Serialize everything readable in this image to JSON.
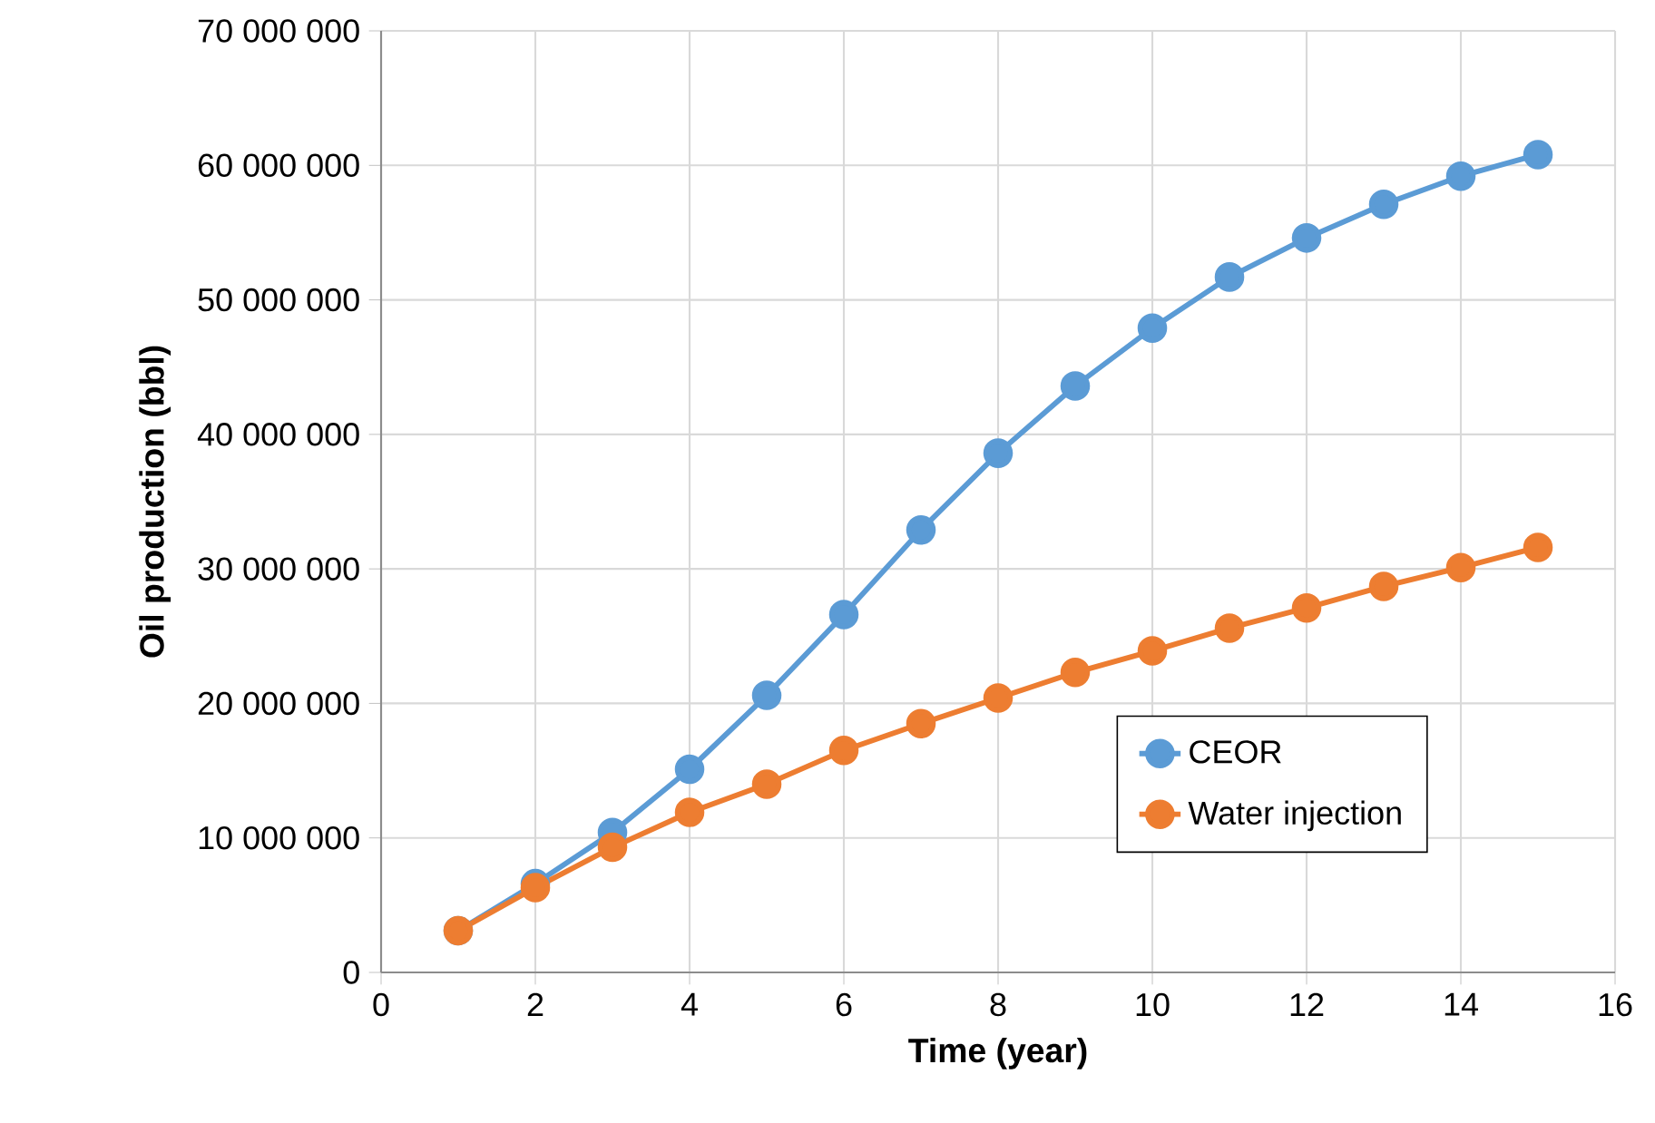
{
  "chart_data": {
    "type": "line",
    "xlabel": "Time (year)",
    "ylabel": "Oil production (bbl)",
    "x": [
      1,
      2,
      3,
      4,
      5,
      6,
      7,
      8,
      9,
      10,
      11,
      12,
      13,
      14,
      15
    ],
    "series": [
      {
        "name": "CEOR",
        "color": "#5b9bd5",
        "values": [
          3100000,
          6600000,
          10400000,
          15100000,
          20600000,
          26600000,
          32900000,
          38600000,
          43600000,
          47900000,
          51700000,
          54600000,
          57100000,
          59200000,
          60800000
        ]
      },
      {
        "name": "Water injection",
        "color": "#ed7d31",
        "values": [
          3100000,
          6300000,
          9300000,
          11900000,
          14000000,
          16500000,
          18500000,
          20400000,
          22300000,
          23900000,
          25600000,
          27100000,
          28700000,
          30100000,
          31600000
        ]
      }
    ],
    "xlim": [
      0,
      16
    ],
    "xticks": [
      0,
      2,
      4,
      6,
      8,
      10,
      12,
      14,
      16
    ],
    "ylim": [
      0,
      70000000
    ],
    "yticks": [
      {
        "value": 0,
        "label": "0"
      },
      {
        "value": 10000000,
        "label": "10 000 000"
      },
      {
        "value": 20000000,
        "label": "20 000 000"
      },
      {
        "value": 30000000,
        "label": "30 000 000"
      },
      {
        "value": 40000000,
        "label": "40 000 000"
      },
      {
        "value": 50000000,
        "label": "50 000 000"
      },
      {
        "value": 60000000,
        "label": "60 000 000"
      },
      {
        "value": 70000000,
        "label": "70 000 000"
      }
    ],
    "grid": true,
    "legend": "right",
    "marker": "circle",
    "line_style": "solid"
  }
}
